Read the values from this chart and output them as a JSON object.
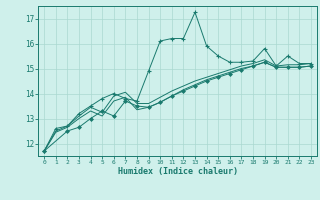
{
  "bg_color": "#cff0eb",
  "grid_color": "#aad8d0",
  "line_color": "#1a7a6e",
  "xlabel": "Humidex (Indice chaleur)",
  "xlim": [
    -0.5,
    23.5
  ],
  "ylim": [
    11.5,
    17.5
  ],
  "yticks": [
    12,
    13,
    14,
    15,
    16,
    17
  ],
  "xticks": [
    0,
    1,
    2,
    3,
    4,
    5,
    6,
    7,
    8,
    9,
    10,
    11,
    12,
    13,
    14,
    15,
    16,
    17,
    18,
    19,
    20,
    21,
    22,
    23
  ],
  "series": [
    {
      "x": [
        0,
        1,
        2,
        3,
        4,
        5,
        6,
        7,
        8,
        9,
        10,
        11,
        12,
        13,
        14,
        15,
        16,
        17,
        18,
        19,
        20,
        21,
        22,
        23
      ],
      "y": [
        11.7,
        12.6,
        12.7,
        13.2,
        13.5,
        13.8,
        14.0,
        13.8,
        13.7,
        14.9,
        16.1,
        16.2,
        16.2,
        17.25,
        15.9,
        15.5,
        15.25,
        15.25,
        15.3,
        15.8,
        15.1,
        15.5,
        15.2,
        15.2
      ],
      "marker": "+"
    },
    {
      "x": [
        0,
        1,
        2,
        3,
        4,
        5,
        6,
        7,
        8,
        9,
        10,
        11,
        12,
        13,
        14,
        15,
        16,
        17,
        18,
        19,
        20,
        21,
        22,
        23
      ],
      "y": [
        11.7,
        12.5,
        12.7,
        13.1,
        13.45,
        13.25,
        13.9,
        14.05,
        13.6,
        13.6,
        13.85,
        14.1,
        14.3,
        14.5,
        14.65,
        14.8,
        14.95,
        15.1,
        15.2,
        15.35,
        15.1,
        15.15,
        15.15,
        15.2
      ],
      "marker": null
    },
    {
      "x": [
        0,
        1,
        2,
        3,
        4,
        5,
        6,
        7,
        8,
        9,
        10,
        11,
        12,
        13,
        14,
        15,
        16,
        17,
        18,
        19,
        20,
        21,
        22,
        23
      ],
      "y": [
        11.7,
        12.45,
        12.65,
        13.0,
        13.3,
        13.1,
        13.7,
        13.85,
        13.35,
        13.45,
        13.65,
        13.9,
        14.15,
        14.35,
        14.55,
        14.7,
        14.85,
        15.0,
        15.1,
        15.25,
        15.05,
        15.05,
        15.05,
        15.1
      ],
      "marker": null
    },
    {
      "x": [
        0,
        2,
        3,
        4,
        5,
        6,
        7,
        8,
        9,
        10,
        11,
        12,
        13,
        14,
        15,
        16,
        17,
        18,
        19,
        20,
        21,
        22,
        23
      ],
      "y": [
        11.7,
        12.5,
        12.65,
        13.0,
        13.3,
        13.1,
        13.7,
        13.5,
        13.45,
        13.65,
        13.9,
        14.1,
        14.3,
        14.5,
        14.65,
        14.8,
        14.95,
        15.1,
        15.25,
        15.05,
        15.05,
        15.05,
        15.1
      ],
      "marker": "D"
    }
  ]
}
